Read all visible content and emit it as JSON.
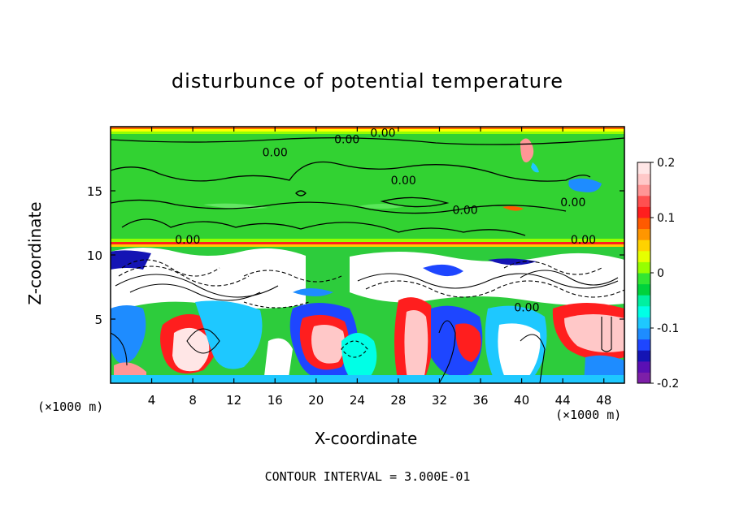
{
  "chart_data": {
    "type": "heatmap",
    "title": "disturbunce of potential temperature",
    "xlabel": "X-coordinate",
    "ylabel": "Z-coordinate",
    "x_unit_left": "(×1000 m)",
    "x_unit_right": "(×1000 m)",
    "xlim": [
      0,
      50
    ],
    "ylim": [
      0,
      20
    ],
    "x_ticks": [
      4,
      8,
      12,
      16,
      20,
      24,
      28,
      32,
      36,
      40,
      44,
      48
    ],
    "y_ticks": [
      5,
      10,
      15
    ],
    "contour_labels": [
      "0.00",
      "0.00",
      "0.00",
      "0.00",
      "0.00",
      "0.00",
      "0.00",
      "0.00",
      "0.00"
    ],
    "colorbar": {
      "min": -0.2,
      "max": 0.2,
      "tick_labels": [
        "0.2",
        "0.1",
        "0",
        "-0.1",
        "-0.2"
      ],
      "tick_values": [
        0.2,
        0.1,
        0,
        -0.1,
        -0.2
      ],
      "colors": [
        "#7d1fa8",
        "#5a0fb4",
        "#1414b4",
        "#1e46ff",
        "#1e8cff",
        "#1ec8ff",
        "#00ffe6",
        "#00f0a0",
        "#00d23c",
        "#32e632",
        "#96ff00",
        "#e6ff00",
        "#ffd200",
        "#ff9600",
        "#ff5a00",
        "#ff1e1e",
        "#ff5050",
        "#ff9696",
        "#ffc8c8",
        "#ffe6e6"
      ]
    },
    "contour_interval_text": "CONTOUR INTERVAL = 3.000E-01"
  }
}
